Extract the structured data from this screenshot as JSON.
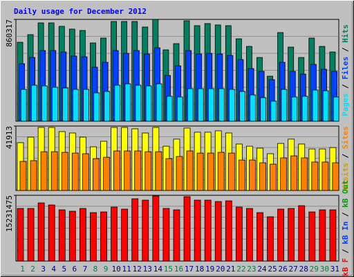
{
  "title": "Daily usage for December 2012",
  "categories": [
    "1",
    "2",
    "3",
    "4",
    "5",
    "6",
    "7",
    "8",
    "9",
    "10",
    "11",
    "12",
    "13",
    "14",
    "15",
    "16",
    "17",
    "18",
    "19",
    "20",
    "21",
    "22",
    "23",
    "24",
    "25",
    "26",
    "27",
    "28",
    "29",
    "30",
    "31"
  ],
  "category_colors": [
    "#008040",
    "#008040",
    "#000080",
    "#000080",
    "#000080",
    "#000080",
    "#000080",
    "#008040",
    "#008040",
    "#000080",
    "#000080",
    "#000080",
    "#000080",
    "#000080",
    "#008040",
    "#008040",
    "#000080",
    "#000080",
    "#000080",
    "#000080",
    "#000080",
    "#008040",
    "#008040",
    "#000080",
    "#000080",
    "#000080",
    "#000080",
    "#000080",
    "#008040",
    "#008040",
    "#000080"
  ],
  "chart_data": [
    {
      "type": "bar",
      "ylim": [
        0,
        860317
      ],
      "yticks": [
        860317
      ],
      "separator": " / ",
      "legend": [
        {
          "name": "Pages",
          "color": "#00e0ff"
        },
        {
          "name": "Files",
          "color": "#0040ff"
        },
        {
          "name": "Hits",
          "color": "#008060"
        }
      ],
      "series": [
        {
          "color": "#008060",
          "values": [
            667000,
            731600,
            831000,
            831000,
            801800,
            778400,
            766700,
            661300,
            702300,
            842800,
            842800,
            842800,
            796000,
            860317,
            602800,
            655500,
            848600,
            807600,
            825200,
            813500,
            807600,
            696400,
            632100,
            538400,
            380400,
            749100,
            626200,
            538400,
            702300,
            632100,
            585200
          ]
        },
        {
          "color": "#0040ff",
          "values": [
            485800,
            538400,
            597000,
            597000,
            585300,
            550100,
            544300,
            456500,
            497500,
            597000,
            573500,
            597000,
            567700,
            620400,
            386300,
            468200,
            597000,
            567700,
            573500,
            567700,
            556000,
            520900,
            444800,
            421400,
            351200,
            497500,
            421400,
            398000,
            479900,
            438900,
            421400
          ]
        },
        {
          "color": "#00e0ff",
          "values": [
            269200,
            304300,
            298500,
            286800,
            280900,
            269200,
            269200,
            240000,
            251700,
            304300,
            316000,
            304300,
            298500,
            316000,
            210700,
            204800,
            275100,
            275100,
            275100,
            275100,
            269200,
            251700,
            222400,
            199000,
            169700,
            269200,
            204800,
            210700,
            263400,
            257500,
            204800
          ]
        }
      ]
    },
    {
      "type": "bar",
      "ylim": [
        0,
        41913
      ],
      "yticks": [
        41913
      ],
      "separator": " / ",
      "legend": [
        {
          "name": "Visits",
          "color": "#d0a000"
        },
        {
          "name": "Sites",
          "color": "#ff8000"
        }
      ],
      "series": [
        {
          "color": "#ffff00",
          "values": [
            31100,
            34700,
            41000,
            41000,
            38300,
            37400,
            34700,
            28400,
            32000,
            41000,
            41000,
            40100,
            37400,
            41000,
            28800,
            33400,
            40600,
            37900,
            37900,
            38800,
            37400,
            30200,
            28800,
            27500,
            23900,
            30600,
            33400,
            30200,
            27000,
            27000,
            27900
          ]
        },
        {
          "color": "#ff8000",
          "values": [
            18900,
            19400,
            25200,
            25200,
            24800,
            24300,
            23900,
            20700,
            21600,
            25700,
            25700,
            25700,
            25200,
            25200,
            20700,
            22100,
            25700,
            24300,
            24300,
            24800,
            24300,
            19800,
            19800,
            18000,
            17100,
            21200,
            22500,
            21200,
            18500,
            18500,
            18000
          ]
        }
      ]
    },
    {
      "type": "bar",
      "ylim": [
        0,
        15231475
      ],
      "yticks": [
        15231475
      ],
      "separator": " / ",
      "legend": [
        {
          "name": "kB F",
          "color": "#ff0000"
        },
        {
          "name": "kB In",
          "color": "#0040ff"
        },
        {
          "name": "kB Out",
          "color": "#00a000"
        }
      ],
      "series": [
        {
          "color": "#ff0000",
          "values": [
            12185000,
            12185000,
            13468000,
            12987000,
            11864000,
            11544000,
            12185000,
            11223000,
            11384000,
            12506000,
            12025000,
            14430000,
            14109000,
            15071000,
            12185000,
            11864000,
            14911000,
            14109000,
            14109000,
            13788000,
            13949000,
            12506000,
            12185000,
            11223000,
            10261000,
            12025000,
            12185000,
            12826000,
            11384000,
            11864000,
            11864000
          ]
        }
      ]
    }
  ]
}
